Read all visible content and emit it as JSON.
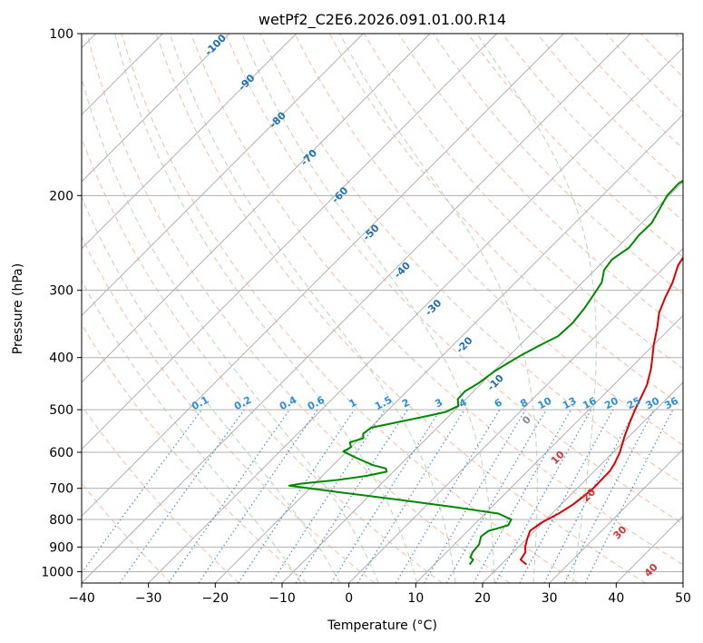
{
  "chart_data": {
    "type": "line",
    "title": "wetPf2_C2E6.2026.091.01.00.R14",
    "xlabel": "Temperature (°C)",
    "ylabel": "Pressure (hPa)",
    "xlim": [
      -40,
      50
    ],
    "ylim": [
      1050,
      100
    ],
    "y_scale": "log",
    "grid": true,
    "x_ticks": [
      -40,
      -30,
      -20,
      -10,
      0,
      10,
      20,
      30,
      40,
      50
    ],
    "x_tick_labels": [
      "−40",
      "−30",
      "−20",
      "−10",
      "0",
      "10",
      "20",
      "30",
      "40",
      "50"
    ],
    "y_ticks": [
      100,
      200,
      300,
      400,
      500,
      600,
      700,
      800,
      900,
      1000
    ],
    "y_tick_labels": [
      "100",
      "200",
      "300",
      "400",
      "500",
      "600",
      "700",
      "800",
      "900",
      "1000"
    ],
    "series": [
      {
        "color": "#dd0000",
        "points": [
          [
            23.8,
            970
          ],
          [
            22.2,
            950
          ],
          [
            21.8,
            920
          ],
          [
            21,
            900
          ],
          [
            20.1,
            870
          ],
          [
            19.3,
            840
          ],
          [
            19.8,
            810
          ],
          [
            21,
            780
          ],
          [
            21.8,
            750
          ],
          [
            22.2,
            720
          ],
          [
            22.4,
            700
          ],
          [
            22.3,
            650
          ],
          [
            21.9,
            630
          ],
          [
            21,
            600
          ],
          [
            19.3,
            560
          ],
          [
            18.1,
            530
          ],
          [
            16.9,
            500
          ],
          [
            15.8,
            470
          ],
          [
            15,
            450
          ],
          [
            13.2,
            420
          ],
          [
            11.7,
            400
          ],
          [
            10.1,
            380
          ],
          [
            7.8,
            350
          ],
          [
            6,
            330
          ],
          [
            4.7,
            310
          ],
          [
            3.5,
            290
          ],
          [
            1.8,
            270
          ],
          [
            0.8,
            250
          ],
          [
            0.3,
            230
          ],
          [
            0.3,
            215
          ],
          [
            1.4,
            200
          ],
          [
            3.6,
            180
          ],
          [
            5.8,
            165
          ],
          [
            7.2,
            155
          ],
          [
            7.4,
            145
          ],
          [
            7.1,
            135
          ],
          [
            6.6,
            125
          ],
          [
            6.6,
            118
          ],
          [
            7.6,
            110
          ],
          [
            8.8,
            104
          ],
          [
            9,
            100
          ]
        ]
      },
      {
        "color": "#008800",
        "points": [
          [
            15.3,
            970
          ],
          [
            15.1,
            950
          ],
          [
            14.3,
            940
          ],
          [
            13.9,
            920
          ],
          [
            13.7,
            890
          ],
          [
            12.8,
            860
          ],
          [
            13.1,
            840
          ],
          [
            15.2,
            820
          ],
          [
            14.8,
            800
          ],
          [
            12,
            780
          ],
          [
            5,
            760
          ],
          [
            -5,
            735
          ],
          [
            -15,
            712
          ],
          [
            -23.5,
            692
          ],
          [
            -22,
            686
          ],
          [
            -17,
            675
          ],
          [
            -13.5,
            664
          ],
          [
            -11,
            652
          ],
          [
            -11.6,
            643
          ],
          [
            -14,
            634
          ],
          [
            -17.5,
            615
          ],
          [
            -20.5,
            598
          ],
          [
            -20,
            587
          ],
          [
            -20.9,
            575
          ],
          [
            -19.5,
            565
          ],
          [
            -20.2,
            554
          ],
          [
            -19.9,
            540
          ],
          [
            -16.1,
            525
          ],
          [
            -13.6,
            515
          ],
          [
            -11.1,
            505
          ],
          [
            -10.1,
            492
          ],
          [
            -11.2,
            478
          ],
          [
            -11.3,
            462
          ],
          [
            -10.5,
            447
          ],
          [
            -9.9,
            425
          ],
          [
            -9.1,
            410
          ],
          [
            -8.2,
            395
          ],
          [
            -7,
            380
          ],
          [
            -5.6,
            365
          ],
          [
            -5.4,
            345
          ],
          [
            -5.8,
            325
          ],
          [
            -6.5,
            305
          ],
          [
            -7.1,
            290
          ],
          [
            -8.6,
            275
          ],
          [
            -9,
            263
          ],
          [
            -8.2,
            250
          ],
          [
            -8.6,
            237
          ],
          [
            -8.5,
            225
          ],
          [
            -9.4,
            212
          ],
          [
            -10.3,
            200
          ],
          [
            -10.4,
            190
          ],
          [
            -9.3,
            180
          ],
          [
            -8.4,
            172
          ],
          [
            -7.5,
            166
          ],
          [
            -5.8,
            160
          ],
          [
            -3.7,
            153
          ],
          [
            -1.9,
            145
          ],
          [
            -1.8,
            130
          ],
          [
            -1.6,
            122
          ],
          [
            -1,
            115
          ],
          [
            0.3,
            108
          ],
          [
            1.3,
            104
          ],
          [
            1.9,
            100
          ]
        ]
      }
    ],
    "dry_adiabat_labels": [
      "-100",
      "-90",
      "-80",
      "-70",
      "-60",
      "-50",
      "-40",
      "-30",
      "-20",
      "-10",
      "0",
      "10",
      "20",
      "30",
      "40"
    ],
    "mixing_ratio_labels": [
      "0.1",
      "0.2",
      "0.4",
      "0.6",
      "1",
      "1.5",
      "2",
      "3",
      "4",
      "6",
      "8",
      "10",
      "13",
      "16",
      "20",
      "25",
      "30",
      "36"
    ]
  }
}
